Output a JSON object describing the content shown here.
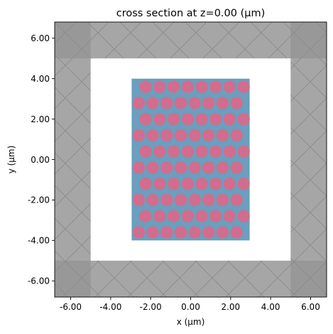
{
  "chart_data": {
    "type": "scatter",
    "title": "cross section at z=0.00 (μm)",
    "xlabel": "x (μm)",
    "ylabel": "y (μm)",
    "xlim": [
      -6.8,
      6.8
    ],
    "ylim": [
      -6.8,
      6.8
    ],
    "xticks": [
      "-6.00",
      "-4.00",
      "-2.00",
      "0.00",
      "2.00",
      "4.00",
      "6.00"
    ],
    "yticks": [
      "-6.00",
      "-4.00",
      "-2.00",
      "0.00",
      "2.00",
      "4.00",
      "6.00"
    ],
    "xtick_values": [
      -6,
      -4,
      -2,
      0,
      2,
      4,
      6
    ],
    "ytick_values": [
      -6,
      -4,
      -2,
      0,
      2,
      4,
      6
    ],
    "grid": false,
    "simulation_domain": {
      "x": [
        -5,
        5
      ],
      "y": [
        -5,
        5
      ]
    },
    "pml_thickness": 1.8,
    "slab": {
      "x": [
        -2.95,
        2.95
      ],
      "y": [
        -4.0,
        4.0
      ],
      "color": "#6a9fbd"
    },
    "holes": {
      "color": "#d16d8e",
      "radius": 0.31,
      "rows_y": [
        3.6,
        2.8,
        2.0,
        1.2,
        0.4,
        -0.4,
        -1.2,
        -2.0,
        -2.8,
        -3.6
      ],
      "row_type": [
        "A",
        "B",
        "A",
        "B",
        "A",
        "B",
        "A",
        "B",
        "A",
        "B"
      ],
      "row_x": {
        "A": [
          -2.25,
          -1.55,
          -0.85,
          -0.15,
          0.55,
          1.25,
          1.95,
          2.65
        ],
        "B": [
          -2.6,
          -1.9,
          -1.2,
          -0.5,
          0.2,
          0.9,
          1.6,
          2.3
        ]
      }
    },
    "colors": {
      "pml": "#a6a6a6",
      "pml_corner": "#8c8c8c",
      "background": "#ffffff"
    }
  }
}
